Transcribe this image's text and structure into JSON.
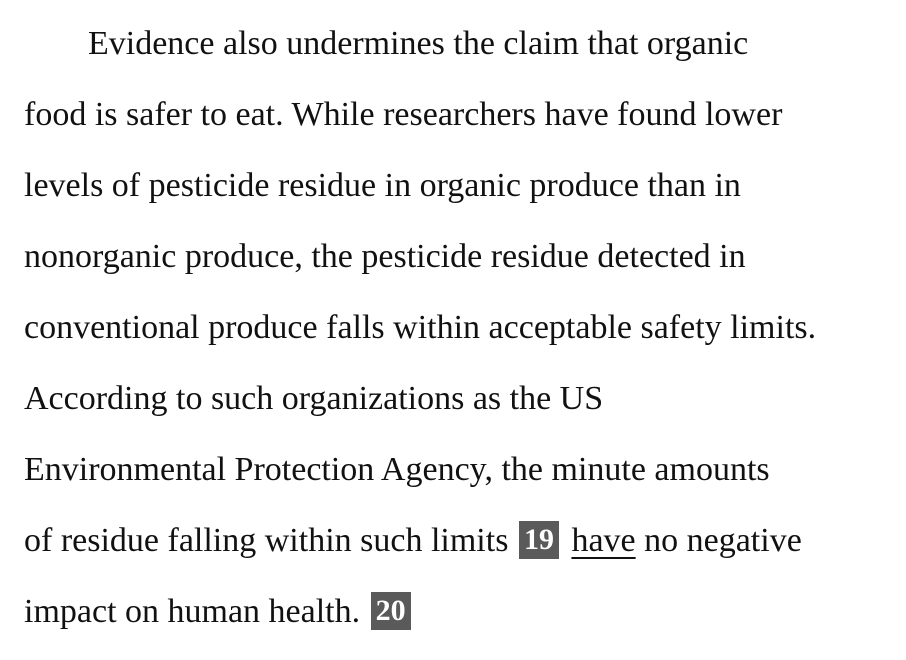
{
  "passage": {
    "lines": [
      "Evidence also undermines the claim that organic",
      "food is safer to eat. While researchers have found lower",
      "levels of pesticide residue in organic produce than in",
      "nonorganic produce, the pesticide residue detected in",
      "conventional produce falls within acceptable safety limits.",
      "According to such organizations as the US",
      "Environmental Protection Agency, the minute amounts"
    ],
    "line8_before": "of residue falling within such limits",
    "question_19": "19",
    "underlined_text": "have",
    "line8_after": "no negative",
    "line9_text": "impact on human health.",
    "question_20": "20"
  }
}
